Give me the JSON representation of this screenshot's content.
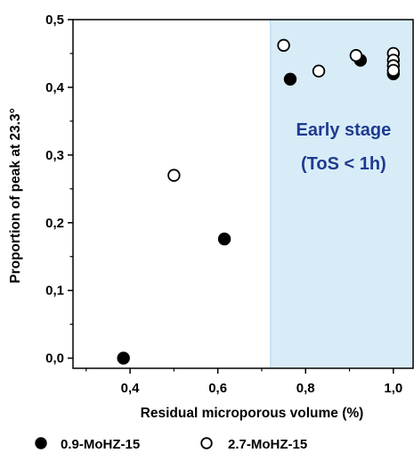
{
  "chart_data": {
    "type": "scatter",
    "xlabel": "Residual microporous volume (%)",
    "ylabel": "Proportion of peak at 23.3°",
    "xlim": [
      0.27,
      1.045
    ],
    "ylim": [
      -0.015,
      0.5
    ],
    "x_ticks": [
      "0,4",
      "0,6",
      "0,8",
      "1,0"
    ],
    "x_tick_values": [
      0.4,
      0.6,
      0.8,
      1.0
    ],
    "y_ticks": [
      "0,0",
      "0,1",
      "0,2",
      "0,3",
      "0,4",
      "0,5"
    ],
    "y_tick_values": [
      0.0,
      0.1,
      0.2,
      0.3,
      0.4,
      0.5
    ],
    "shaded_region": {
      "x_start": 0.72,
      "x_end": 1.045,
      "color": "#d8ecf8",
      "label_line1": "Early stage",
      "label_line2": "(ToS < 1h)"
    },
    "series": [
      {
        "name": "0.9-MoHZ-15",
        "marker": "filled-circle",
        "color": "#000000",
        "x": [
          0.385,
          0.615,
          0.765,
          0.925,
          1.0
        ],
        "y": [
          0.0,
          0.176,
          0.412,
          0.44,
          0.42
        ]
      },
      {
        "name": "2.7-MoHZ-15",
        "marker": "open-circle",
        "color": "#000000",
        "x": [
          0.5,
          0.75,
          0.83,
          0.915,
          1.0,
          1.0,
          1.0,
          1.0
        ],
        "y": [
          0.27,
          0.462,
          0.424,
          0.447,
          0.45,
          0.44,
          0.432,
          0.425
        ]
      }
    ],
    "legend_position": "bottom",
    "grid": false
  }
}
